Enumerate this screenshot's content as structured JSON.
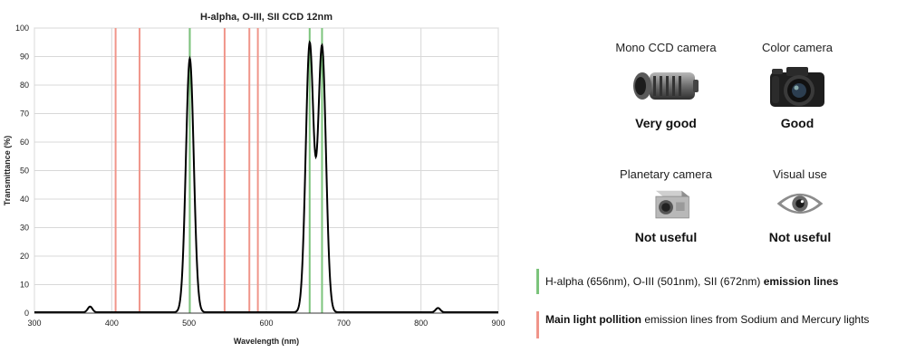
{
  "chart_data": {
    "type": "line",
    "title": "H-alpha, O-III, SII CCD 12nm",
    "xlabel": "Wavelength (nm)",
    "ylabel": "Transmittance (%)",
    "xlim": [
      300,
      900
    ],
    "ylim": [
      0,
      100
    ],
    "x_ticks": [
      300,
      400,
      500,
      600,
      700,
      800,
      900
    ],
    "y_ticks": [
      0,
      10,
      20,
      30,
      40,
      50,
      60,
      70,
      80,
      90,
      100
    ],
    "grid": true,
    "series": [
      {
        "color": "#000000",
        "peaks": [
          {
            "center": 501,
            "height": 89,
            "fwhm": 12
          },
          {
            "center": 656,
            "height": 94,
            "fwhm": 12
          },
          {
            "center": 672,
            "height": 93,
            "fwhm": 12
          }
        ],
        "small_features": [
          {
            "center": 372,
            "height": 2
          },
          {
            "center": 822,
            "height": 1.5
          }
        ]
      }
    ],
    "vertical_lines": [
      {
        "x": 501,
        "color": "#7cc47c",
        "group": "emission"
      },
      {
        "x": 656,
        "color": "#7cc47c",
        "group": "emission"
      },
      {
        "x": 672,
        "color": "#7cc47c",
        "group": "emission"
      },
      {
        "x": 405,
        "color": "#f0958a",
        "group": "pollution"
      },
      {
        "x": 436,
        "color": "#f0958a",
        "group": "pollution"
      },
      {
        "x": 546,
        "color": "#f0958a",
        "group": "pollution"
      },
      {
        "x": 578,
        "color": "#f0958a",
        "group": "pollution"
      },
      {
        "x": 589,
        "color": "#f0958a",
        "group": "pollution"
      }
    ]
  },
  "cameras": [
    {
      "name": "Mono CCD camera",
      "rating": "Very good",
      "icon": "mono-ccd-camera-icon"
    },
    {
      "name": "Color camera",
      "rating": "Good",
      "icon": "dslr-camera-icon"
    },
    {
      "name": "Planetary camera",
      "rating": "Not useful",
      "icon": "planetary-camera-icon"
    },
    {
      "name": "Visual use",
      "rating": "Not useful",
      "icon": "eye-icon"
    }
  ],
  "legend": {
    "emission": {
      "color": "#7cc47c",
      "normal": "H-alpha (656nm), O-III (501nm), SII (672nm) ",
      "bold": "emission lines"
    },
    "pollution": {
      "color": "#f0958a",
      "bold": "Main light pollition",
      "normal": " emission lines from Sodium and Mercury lights"
    }
  }
}
